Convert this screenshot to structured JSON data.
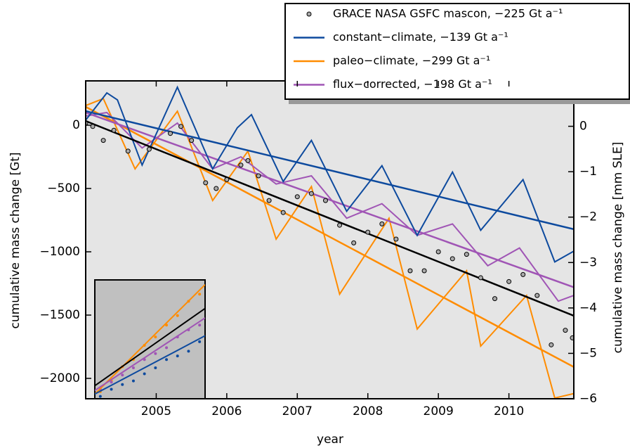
{
  "chart_data": {
    "type": "line",
    "xlabel": "year",
    "ylabel": "cumulative mass change [Gt]",
    "y2label": "cumulative mass change [mm SLE]",
    "xlim": [
      2004.0,
      2010.92
    ],
    "xticks": [
      2005,
      2006,
      2007,
      2008,
      2009,
      2010
    ],
    "ylim": [
      -2161,
      350
    ],
    "yticks": [
      0,
      {
        "value": -500,
        "label": "−500"
      },
      {
        "value": -1000,
        "label": "−1000"
      },
      {
        "value": -1500,
        "label": "−1500"
      },
      {
        "value": -2000,
        "label": "−2000"
      }
    ],
    "y2lim": [
      1.0,
      -6.0
    ],
    "y2ticks": [
      0,
      {
        "value": -1,
        "label": "−1"
      },
      {
        "value": -2,
        "label": "−2"
      },
      {
        "value": -3,
        "label": "−3"
      },
      {
        "value": -4,
        "label": "−4"
      },
      {
        "value": -5,
        "label": "−5"
      },
      {
        "value": -6,
        "label": "−6"
      }
    ],
    "legend": "upper right",
    "series": [
      {
        "name": "GRACE NASA GSFC mascon, −225 Gt a⁻¹",
        "color": "#000000",
        "marker": "circle",
        "x": [
          2004.0,
          2004.1,
          2004.25,
          2004.4,
          2004.6,
          2004.9,
          2005.2,
          2005.35,
          2005.5,
          2005.7,
          2005.85,
          2006.0,
          2006.2,
          2006.3,
          2006.45,
          2006.6,
          2006.8,
          2007.0,
          2007.2,
          2007.4,
          2007.6,
          2007.8,
          2008.0,
          2008.2,
          2008.4,
          2008.6,
          2008.8,
          2009.0,
          2009.2,
          2009.4,
          2009.6,
          2009.8,
          2010.0,
          2010.2,
          2010.4,
          2010.6,
          2010.8,
          2010.9
        ],
        "values": [
          15,
          -10,
          -120,
          -40,
          -205,
          -190,
          -65,
          -10,
          -120,
          -455,
          -500,
          -430,
          -315,
          -280,
          -400,
          -595,
          -690,
          -565,
          -540,
          -595,
          -790,
          -930,
          -845,
          -780,
          -900,
          -1150,
          -1150,
          -1000,
          -1055,
          -1020,
          -1205,
          -1370,
          -1235,
          -1180,
          -1345,
          -1735,
          -1620,
          -1680
        ],
        "trend": [
          33,
          -1505
        ]
      },
      {
        "name": "constant−climate, −139 Gt a⁻¹",
        "color": "#0d4a9e",
        "x": [
          2004.0,
          2004.3,
          2004.45,
          2004.8,
          2005.3,
          2005.8,
          2006.15,
          2006.35,
          2006.8,
          2007.2,
          2007.7,
          2008.2,
          2008.7,
          2009.2,
          2009.6,
          2010.2,
          2010.65,
          2010.92
        ],
        "values": [
          40,
          255,
          200,
          -315,
          300,
          -345,
          -20,
          83,
          -445,
          -120,
          -680,
          -320,
          -870,
          -370,
          -830,
          -430,
          -1080,
          -995
        ],
        "trend": [
          111,
          -822
        ]
      },
      {
        "name": "paleo−climate, −299 Gt a⁻¹",
        "color": "#ff8c00",
        "x": [
          2004.0,
          2004.25,
          2004.7,
          2005.3,
          2005.8,
          2006.3,
          2006.7,
          2007.2,
          2007.6,
          2008.3,
          2008.7,
          2009.4,
          2009.6,
          2010.25,
          2010.65,
          2010.92
        ],
        "values": [
          155,
          210,
          -345,
          110,
          -595,
          -205,
          -900,
          -485,
          -1335,
          -735,
          -1610,
          -1150,
          -1745,
          -1345,
          -2155,
          -2120
        ],
        "trend": [
          145,
          -1910
        ]
      },
      {
        "name": "flux−corrected, −198 Gt a⁻¹",
        "color": "#a055b5",
        "x": [
          2004.0,
          2004.3,
          2004.8,
          2005.3,
          2005.8,
          2006.2,
          2006.7,
          2007.2,
          2007.7,
          2008.2,
          2008.7,
          2009.2,
          2009.7,
          2010.15,
          2010.7,
          2010.92
        ],
        "values": [
          72,
          100,
          -180,
          17,
          -345,
          -250,
          -465,
          -400,
          -735,
          -620,
          -870,
          -780,
          -1110,
          -970,
          -1390,
          -1345
        ],
        "trend": [
          100,
          -1280
        ]
      }
    ],
    "inset": {
      "xlim": [
        0,
        1
      ],
      "ylim": [
        0,
        1
      ],
      "lines": [
        {
          "color": "#ff8c00",
          "values": [
            0.04,
            0.96
          ]
        },
        {
          "color": "#000000",
          "values": [
            0.11,
            0.76
          ]
        },
        {
          "color": "#a055b5",
          "values": [
            0.07,
            0.68
          ]
        },
        {
          "color": "#0d4a9e",
          "values": [
            0.04,
            0.53
          ]
        }
      ],
      "points": [
        {
          "color": "#ff8c00",
          "x": [
            0.05,
            0.15,
            0.25,
            0.35,
            0.45,
            0.55,
            0.65,
            0.75,
            0.85,
            0.95
          ],
          "y": [
            0.06,
            0.15,
            0.27,
            0.33,
            0.45,
            0.52,
            0.62,
            0.7,
            0.82,
            0.88
          ]
        },
        {
          "color": "#a055b5",
          "x": [
            0.05,
            0.15,
            0.25,
            0.35,
            0.45,
            0.55,
            0.65,
            0.75,
            0.85,
            0.95
          ],
          "y": [
            0.08,
            0.14,
            0.2,
            0.26,
            0.33,
            0.38,
            0.43,
            0.52,
            0.58,
            0.62
          ]
        },
        {
          "color": "#0d4a9e",
          "x": [
            0.05,
            0.15,
            0.25,
            0.35,
            0.45,
            0.55,
            0.65,
            0.75,
            0.85,
            0.95
          ],
          "y": [
            0.02,
            0.08,
            0.12,
            0.15,
            0.21,
            0.26,
            0.33,
            0.36,
            0.4,
            0.48
          ]
        }
      ]
    }
  }
}
